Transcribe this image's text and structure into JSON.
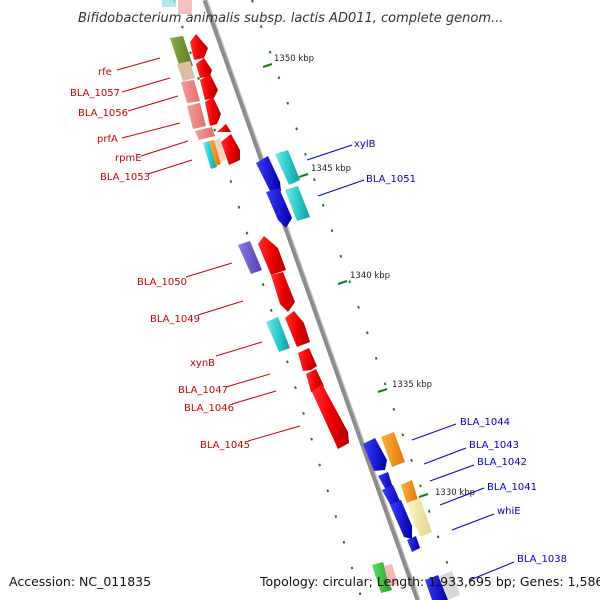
{
  "title": "Bifidobacterium animalis subsp. lactis AD011, complete genom...",
  "footer": {
    "accession": "Accession: NC_011835",
    "topology": "Topology: circular; Length: 1,933,695 bp; Genes: 1,586"
  },
  "colors": {
    "backbone": "#8c8c8c",
    "left_label": "#cc0000",
    "right_label": "#0000cc",
    "tick": "#1a7a1a"
  },
  "ticks": [
    "1350 kbp",
    "1345 kbp",
    "1340 kbp",
    "1335 kbp",
    "1330 kbp"
  ],
  "left_labels": [
    "rfe",
    "BLA_1057",
    "BLA_1056",
    "prfA",
    "rpmE",
    "BLA_1053",
    "BLA_1050",
    "BLA_1049",
    "xynB",
    "BLA_1047",
    "BLA_1046",
    "BLA_1045"
  ],
  "right_labels": [
    "xylB",
    "BLA_1051",
    "BLA_1044",
    "BLA_1043",
    "BLA_1042",
    "BLA_1041",
    "whiE",
    "BLA_1038"
  ]
}
